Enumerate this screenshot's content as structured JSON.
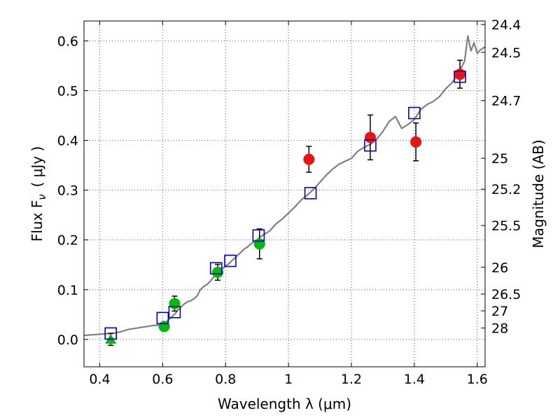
{
  "chart_data": {
    "type": "scatter",
    "xlabel": "Wavelength  λ (μm)",
    "ylabel": "Flux  F",
    "ylabel_sub": "ν",
    "ylabel_unit": "( μJy )",
    "ylabel_right": "Magnitude (AB)",
    "xlim": [
      0.35,
      1.625
    ],
    "ylim": [
      -0.055,
      0.64
    ],
    "grid": true,
    "grid_style": "dotted",
    "x_ticks": [
      0.4,
      0.6,
      0.8,
      1.0,
      1.2,
      1.4,
      1.6
    ],
    "x_tick_labels": [
      "0.4",
      "0.6",
      "0.8",
      "1",
      "1.2",
      "1.4",
      "1.6"
    ],
    "y_ticks": [
      0.0,
      0.1,
      0.2,
      0.3,
      0.4,
      0.5,
      0.6
    ],
    "y_tick_labels": [
      "0.0",
      "0.1",
      "0.2",
      "0.3",
      "0.4",
      "0.5",
      "0.6"
    ],
    "right_ticks": [
      {
        "label": "24.4",
        "flux": 0.633
      },
      {
        "label": "24.5",
        "flux": 0.577
      },
      {
        "label": "24.7",
        "flux": 0.48
      },
      {
        "label": "25",
        "flux": 0.364
      },
      {
        "label": "25.2",
        "flux": 0.302
      },
      {
        "label": "25.5",
        "flux": 0.229
      },
      {
        "label": "26",
        "flux": 0.145
      },
      {
        "label": "26.5",
        "flux": 0.0912
      },
      {
        "label": "27",
        "flux": 0.0575
      },
      {
        "label": "28",
        "flux": 0.0229
      }
    ],
    "colors": {
      "model": "#808080",
      "green": "#00bb00",
      "red": "#ee1111",
      "blue": "#0000cc",
      "errorbar": "#000000",
      "grid": "#555555"
    },
    "series": [
      {
        "marker": "line",
        "color_key": "model",
        "points": [
          [
            0.35,
            0.008
          ],
          [
            0.37,
            0.009
          ],
          [
            0.39,
            0.01
          ],
          [
            0.41,
            0.011
          ],
          [
            0.43,
            0.012
          ],
          [
            0.45,
            0.013
          ],
          [
            0.47,
            0.016
          ],
          [
            0.49,
            0.02
          ],
          [
            0.51,
            0.022
          ],
          [
            0.53,
            0.024
          ],
          [
            0.55,
            0.026
          ],
          [
            0.57,
            0.028
          ],
          [
            0.59,
            0.029
          ],
          [
            0.6,
            0.03
          ],
          [
            0.61,
            0.034
          ],
          [
            0.62,
            0.04
          ],
          [
            0.63,
            0.046
          ],
          [
            0.64,
            0.052
          ],
          [
            0.65,
            0.06
          ],
          [
            0.66,
            0.066
          ],
          [
            0.67,
            0.072
          ],
          [
            0.68,
            0.076
          ],
          [
            0.69,
            0.078
          ],
          [
            0.7,
            0.082
          ],
          [
            0.71,
            0.088
          ],
          [
            0.72,
            0.1
          ],
          [
            0.73,
            0.106
          ],
          [
            0.74,
            0.11
          ],
          [
            0.75,
            0.116
          ],
          [
            0.76,
            0.124
          ],
          [
            0.77,
            0.132
          ],
          [
            0.78,
            0.138
          ],
          [
            0.79,
            0.142
          ],
          [
            0.8,
            0.148
          ],
          [
            0.81,
            0.152
          ],
          [
            0.82,
            0.158
          ],
          [
            0.83,
            0.164
          ],
          [
            0.84,
            0.17
          ],
          [
            0.85,
            0.176
          ],
          [
            0.86,
            0.182
          ],
          [
            0.87,
            0.186
          ],
          [
            0.88,
            0.192
          ],
          [
            0.89,
            0.196
          ],
          [
            0.9,
            0.2
          ],
          [
            0.91,
            0.206
          ],
          [
            0.92,
            0.21
          ],
          [
            0.94,
            0.218
          ],
          [
            0.96,
            0.232
          ],
          [
            0.98,
            0.242
          ],
          [
            1.0,
            0.254
          ],
          [
            1.02,
            0.266
          ],
          [
            1.04,
            0.28
          ],
          [
            1.06,
            0.29
          ],
          [
            1.08,
            0.302
          ],
          [
            1.1,
            0.316
          ],
          [
            1.12,
            0.33
          ],
          [
            1.14,
            0.342
          ],
          [
            1.16,
            0.352
          ],
          [
            1.18,
            0.358
          ],
          [
            1.2,
            0.364
          ],
          [
            1.22,
            0.378
          ],
          [
            1.24,
            0.386
          ],
          [
            1.26,
            0.392
          ],
          [
            1.28,
            0.402
          ],
          [
            1.3,
            0.418
          ],
          [
            1.32,
            0.438
          ],
          [
            1.34,
            0.448
          ],
          [
            1.36,
            0.424
          ],
          [
            1.38,
            0.432
          ],
          [
            1.4,
            0.442
          ],
          [
            1.42,
            0.462
          ],
          [
            1.44,
            0.472
          ],
          [
            1.46,
            0.478
          ],
          [
            1.48,
            0.488
          ],
          [
            1.5,
            0.504
          ],
          [
            1.52,
            0.516
          ],
          [
            1.54,
            0.534
          ],
          [
            1.56,
            0.56
          ],
          [
            1.57,
            0.61
          ],
          [
            1.58,
            0.58
          ],
          [
            1.59,
            0.596
          ],
          [
            1.6,
            0.575
          ],
          [
            1.61,
            0.582
          ],
          [
            1.625,
            0.588
          ]
        ]
      },
      {
        "marker": "circle",
        "color_key": "green",
        "points": [
          {
            "x": 0.605,
            "y": 0.026,
            "err": 0.006
          },
          {
            "x": 0.638,
            "y": 0.072,
            "err": 0.015
          },
          {
            "x": 0.775,
            "y": 0.135,
            "err": 0.016
          },
          {
            "x": 0.908,
            "y": 0.192,
            "err": 0.03
          }
        ]
      },
      {
        "marker": "triangle",
        "color_key": "green",
        "points": [
          {
            "x": 0.435,
            "y": 0.0,
            "err": 0.012
          }
        ]
      },
      {
        "marker": "circle",
        "color_key": "red",
        "points": [
          {
            "x": 1.065,
            "y": 0.362,
            "err": 0.026
          },
          {
            "x": 1.26,
            "y": 0.406,
            "err": 0.045
          },
          {
            "x": 1.405,
            "y": 0.397,
            "err": 0.038
          },
          {
            "x": 1.545,
            "y": 0.533,
            "err": 0.028
          }
        ]
      },
      {
        "marker": "square",
        "color_key": "blue",
        "points": [
          {
            "x": 0.435,
            "y": 0.012
          },
          {
            "x": 0.6,
            "y": 0.043
          },
          {
            "x": 0.638,
            "y": 0.055
          },
          {
            "x": 0.77,
            "y": 0.143
          },
          {
            "x": 0.815,
            "y": 0.158
          },
          {
            "x": 0.905,
            "y": 0.209
          },
          {
            "x": 1.07,
            "y": 0.294
          },
          {
            "x": 1.26,
            "y": 0.39
          },
          {
            "x": 1.4,
            "y": 0.455
          },
          {
            "x": 1.545,
            "y": 0.528
          }
        ]
      }
    ]
  }
}
